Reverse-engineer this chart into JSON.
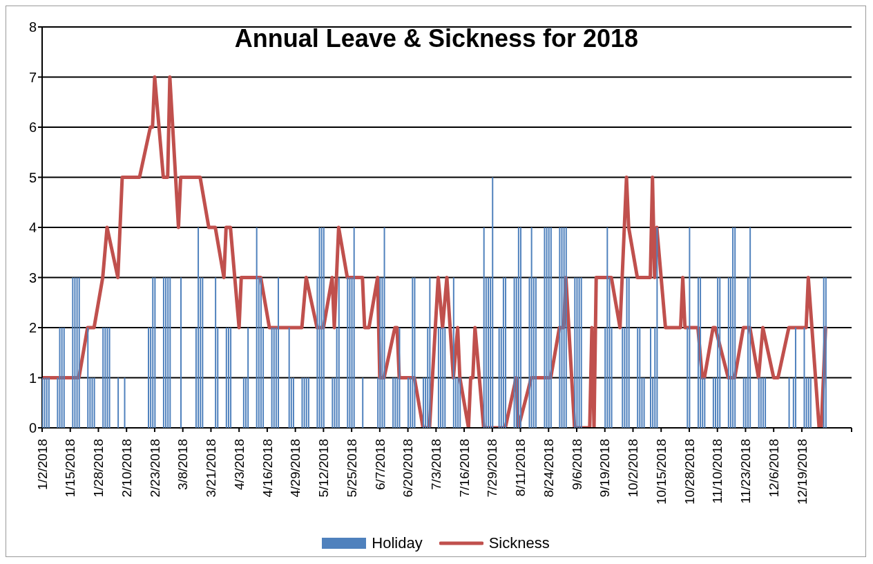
{
  "chart_data": {
    "type": "bar",
    "title": "Annual Leave & Sickness for 2018",
    "xlim": [
      "2018-01-02",
      "2019-01-11"
    ],
    "xticks": [
      {
        "value": "2018-01-02",
        "label": "1/2/2018"
      },
      {
        "value": "2018-01-15",
        "label": "1/15/2018"
      },
      {
        "value": "2018-01-28",
        "label": "1/28/2018"
      },
      {
        "value": "2018-02-10",
        "label": "2/10/2018"
      },
      {
        "value": "2018-02-23",
        "label": "2/23/2018"
      },
      {
        "value": "2018-03-08",
        "label": "3/8/2018"
      },
      {
        "value": "2018-03-21",
        "label": "3/21/2018"
      },
      {
        "value": "2018-04-03",
        "label": "4/3/2018"
      },
      {
        "value": "2018-04-16",
        "label": "4/16/2018"
      },
      {
        "value": "2018-04-29",
        "label": "4/29/2018"
      },
      {
        "value": "2018-05-12",
        "label": "5/12/2018"
      },
      {
        "value": "2018-05-25",
        "label": "5/25/2018"
      },
      {
        "value": "2018-06-07",
        "label": "6/7/2018"
      },
      {
        "value": "2018-06-20",
        "label": "6/20/2018"
      },
      {
        "value": "2018-07-03",
        "label": "7/3/2018"
      },
      {
        "value": "2018-07-16",
        "label": "7/16/2018"
      },
      {
        "value": "2018-07-29",
        "label": "7/29/2018"
      },
      {
        "value": "2018-08-11",
        "label": "8/11/2018"
      },
      {
        "value": "2018-08-24",
        "label": "8/24/2018"
      },
      {
        "value": "2018-09-06",
        "label": "9/6/2018"
      },
      {
        "value": "2018-09-19",
        "label": "9/19/2018"
      },
      {
        "value": "2018-10-02",
        "label": "10/2/2018"
      },
      {
        "value": "2018-10-15",
        "label": "10/15/2018"
      },
      {
        "value": "2018-10-28",
        "label": "10/28/2018"
      },
      {
        "value": "2018-11-10",
        "label": "11/10/2018"
      },
      {
        "value": "2018-11-23",
        "label": "11/23/2018"
      },
      {
        "value": "2018-12-06",
        "label": "12/6/2018"
      },
      {
        "value": "2018-12-19",
        "label": "12/19/2018"
      },
      {
        "value": "2019-01-11",
        "label": null
      }
    ],
    "ylim": [
      0,
      8
    ],
    "yticks": [
      0,
      1,
      2,
      3,
      4,
      5,
      6,
      7,
      8
    ],
    "grid": "y",
    "legend": "bottom",
    "marker": "none",
    "line_style": "solid",
    "series": [
      {
        "name": "Holiday",
        "color": "#4f81bd",
        "x": [
          "2018-01-02",
          "2018-01-03",
          "2018-01-04",
          "2018-01-05",
          "2018-01-09",
          "2018-01-10",
          "2018-01-11",
          "2018-01-12",
          "2018-01-16",
          "2018-01-17",
          "2018-01-18",
          "2018-01-19",
          "2018-01-23",
          "2018-01-24",
          "2018-01-25",
          "2018-01-26",
          "2018-01-30",
          "2018-01-31",
          "2018-02-01",
          "2018-02-02",
          "2018-02-06",
          "2018-02-09",
          "2018-02-20",
          "2018-02-21",
          "2018-02-22",
          "2018-02-23",
          "2018-02-27",
          "2018-02-28",
          "2018-03-01",
          "2018-03-02",
          "2018-03-07",
          "2018-03-14",
          "2018-03-15",
          "2018-03-16",
          "2018-03-17",
          "2018-03-23",
          "2018-03-24",
          "2018-03-28",
          "2018-03-29",
          "2018-03-30",
          "2018-04-05",
          "2018-04-06",
          "2018-04-07",
          "2018-04-11",
          "2018-04-12",
          "2018-04-13",
          "2018-04-14",
          "2018-04-18",
          "2018-04-19",
          "2018-04-20",
          "2018-04-21",
          "2018-04-26",
          "2018-04-27",
          "2018-04-28",
          "2018-05-02",
          "2018-05-03",
          "2018-05-04",
          "2018-05-05",
          "2018-05-09",
          "2018-05-10",
          "2018-05-11",
          "2018-05-12",
          "2018-05-16",
          "2018-05-17",
          "2018-05-18",
          "2018-05-19",
          "2018-05-23",
          "2018-05-24",
          "2018-05-25",
          "2018-05-26",
          "2018-05-30",
          "2018-06-06",
          "2018-06-07",
          "2018-06-08",
          "2018-06-09",
          "2018-06-13",
          "2018-06-14",
          "2018-06-15",
          "2018-06-16",
          "2018-06-20",
          "2018-06-21",
          "2018-06-22",
          "2018-06-23",
          "2018-06-27",
          "2018-06-28",
          "2018-06-29",
          "2018-06-30",
          "2018-07-04",
          "2018-07-05",
          "2018-07-06",
          "2018-07-07",
          "2018-07-11",
          "2018-07-12",
          "2018-07-13",
          "2018-07-14",
          "2018-07-25",
          "2018-07-26",
          "2018-07-27",
          "2018-07-28",
          "2018-07-29",
          "2018-08-01",
          "2018-08-02",
          "2018-08-03",
          "2018-08-04",
          "2018-08-08",
          "2018-08-09",
          "2018-08-10",
          "2018-08-11",
          "2018-08-15",
          "2018-08-16",
          "2018-08-17",
          "2018-08-18",
          "2018-08-22",
          "2018-08-23",
          "2018-08-24",
          "2018-08-25",
          "2018-08-29",
          "2018-08-30",
          "2018-08-31",
          "2018-09-01",
          "2018-09-05",
          "2018-09-06",
          "2018-09-07",
          "2018-09-08",
          "2018-09-19",
          "2018-09-20",
          "2018-09-21",
          "2018-09-22",
          "2018-09-27",
          "2018-09-28",
          "2018-09-29",
          "2018-09-30",
          "2018-10-04",
          "2018-10-05",
          "2018-10-06",
          "2018-10-07",
          "2018-10-10",
          "2018-10-11",
          "2018-10-12",
          "2018-10-13",
          "2018-10-27",
          "2018-10-28",
          "2018-11-01",
          "2018-11-02",
          "2018-11-03",
          "2018-11-04",
          "2018-11-08",
          "2018-11-09",
          "2018-11-10",
          "2018-11-11",
          "2018-11-15",
          "2018-11-16",
          "2018-11-17",
          "2018-11-18",
          "2018-11-22",
          "2018-11-23",
          "2018-11-24",
          "2018-11-25",
          "2018-11-29",
          "2018-11-30",
          "2018-12-01",
          "2018-12-02",
          "2018-12-13",
          "2018-12-15",
          "2018-12-16",
          "2018-12-20",
          "2018-12-21",
          "2018-12-22",
          "2018-12-23",
          "2018-12-29",
          "2018-12-30"
        ],
        "values": [
          1,
          1,
          1,
          1,
          1,
          2,
          2,
          2,
          3,
          3,
          3,
          3,
          2,
          1,
          1,
          1,
          2,
          2,
          2,
          2,
          1,
          1,
          2,
          2,
          3,
          3,
          3,
          3,
          3,
          3,
          3,
          2,
          4,
          3,
          3,
          3,
          2,
          2,
          2,
          2,
          1,
          1,
          2,
          4,
          3,
          3,
          2,
          2,
          2,
          2,
          3,
          2,
          1,
          1,
          1,
          1,
          1,
          1,
          3,
          4,
          4,
          4,
          1,
          1,
          2,
          3,
          3,
          3,
          3,
          4,
          1,
          1,
          3,
          3,
          4,
          1,
          1,
          1,
          2,
          1,
          1,
          3,
          3,
          1,
          1,
          2,
          3,
          2,
          2,
          2,
          2,
          3,
          1,
          1,
          1,
          4,
          3,
          3,
          3,
          5,
          2,
          2,
          3,
          3,
          3,
          3,
          4,
          4,
          3,
          4,
          3,
          3,
          4,
          4,
          4,
          4,
          4,
          4,
          4,
          4,
          3,
          3,
          3,
          3,
          2,
          4,
          3,
          2,
          2,
          2,
          3,
          3,
          2,
          2,
          1,
          1,
          2,
          1,
          2,
          4,
          2,
          4,
          3,
          3,
          1,
          1,
          1,
          1,
          3,
          3,
          3,
          3,
          4,
          4,
          1,
          1,
          3,
          4,
          1,
          1,
          1,
          1,
          1,
          1,
          2,
          2,
          1,
          1,
          1,
          3,
          3
        ]
      },
      {
        "name": "Sickness",
        "type": "line",
        "color": "#c0504d",
        "x": [
          "2018-01-02",
          "2018-01-19",
          "2018-01-23",
          "2018-01-26",
          "2018-01-30",
          "2018-02-01",
          "2018-02-06",
          "2018-02-08",
          "2018-02-16",
          "2018-02-21",
          "2018-02-22",
          "2018-02-23",
          "2018-02-27",
          "2018-03-01",
          "2018-03-02",
          "2018-03-06",
          "2018-03-07",
          "2018-03-16",
          "2018-03-20",
          "2018-03-23",
          "2018-03-27",
          "2018-03-28",
          "2018-03-30",
          "2018-04-03",
          "2018-04-04",
          "2018-04-13",
          "2018-04-17",
          "2018-05-02",
          "2018-05-04",
          "2018-05-09",
          "2018-05-12",
          "2018-05-16",
          "2018-05-17",
          "2018-05-19",
          "2018-05-23",
          "2018-05-30",
          "2018-05-31",
          "2018-06-02",
          "2018-06-06",
          "2018-06-07",
          "2018-06-09",
          "2018-06-14",
          "2018-06-15",
          "2018-06-16",
          "2018-06-23",
          "2018-06-27",
          "2018-06-30",
          "2018-07-04",
          "2018-07-06",
          "2018-07-08",
          "2018-07-11",
          "2018-07-13",
          "2018-07-14",
          "2018-07-18",
          "2018-07-19",
          "2018-07-20",
          "2018-07-21",
          "2018-07-25",
          "2018-08-04",
          "2018-08-09",
          "2018-08-10",
          "2018-08-16",
          "2018-08-25",
          "2018-08-29",
          "2018-08-31",
          "2018-09-01",
          "2018-09-05",
          "2018-09-12",
          "2018-09-13",
          "2018-09-14",
          "2018-09-15",
          "2018-09-22",
          "2018-09-26",
          "2018-09-29",
          "2018-09-30",
          "2018-10-04",
          "2018-10-10",
          "2018-10-11",
          "2018-10-12",
          "2018-10-13",
          "2018-10-17",
          "2018-10-24",
          "2018-10-25",
          "2018-10-26",
          "2018-11-01",
          "2018-11-03",
          "2018-11-04",
          "2018-11-08",
          "2018-11-09",
          "2018-11-15",
          "2018-11-18",
          "2018-11-22",
          "2018-11-25",
          "2018-11-29",
          "2018-12-01",
          "2018-12-06",
          "2018-12-08",
          "2018-12-13",
          "2018-12-21",
          "2018-12-22",
          "2018-12-27",
          "2018-12-28",
          "2018-12-30"
        ],
        "values": [
          1,
          1,
          2,
          2,
          3,
          4,
          3,
          5,
          5,
          6,
          6,
          7,
          5,
          5,
          7,
          4,
          5,
          5,
          4,
          4,
          3,
          4,
          4,
          2,
          3,
          3,
          2,
          2,
          3,
          2,
          2,
          3,
          2,
          4,
          3,
          3,
          2,
          2,
          3,
          1,
          1,
          2,
          2,
          1,
          1,
          0,
          0,
          3,
          2,
          3,
          1,
          2,
          1,
          0,
          1,
          1,
          2,
          0,
          0,
          1,
          0,
          1,
          1,
          2,
          2,
          3,
          0,
          0,
          2,
          0,
          3,
          3,
          2,
          5,
          4,
          3,
          3,
          5,
          3,
          4,
          2,
          2,
          3,
          2,
          2,
          1,
          1,
          2,
          2,
          1,
          1,
          2,
          2,
          1,
          2,
          1,
          1,
          2,
          2,
          3,
          0,
          0,
          2
        ]
      }
    ]
  }
}
